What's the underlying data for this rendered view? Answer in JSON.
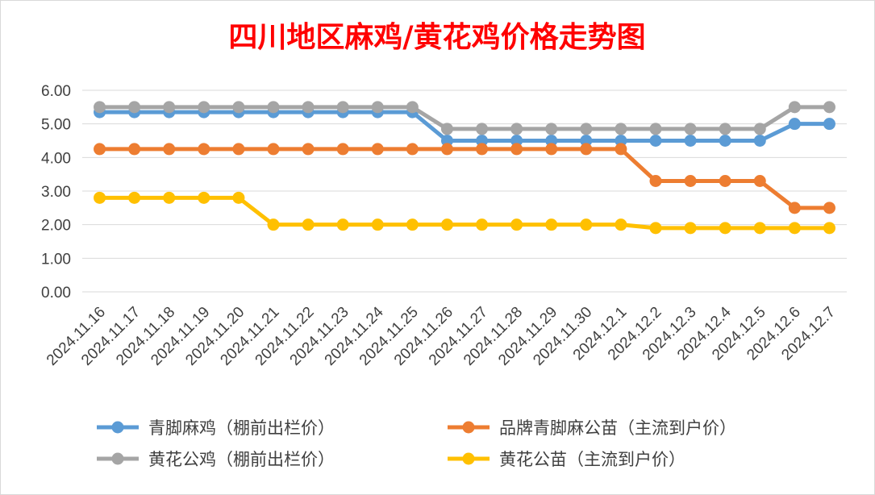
{
  "chart_data": {
    "type": "line",
    "title": "四川地区麻鸡/黄花鸡价格走势图",
    "xlabel": "",
    "ylabel": "",
    "categories": [
      "2024.11.16",
      "2024.11.17",
      "2024.11.18",
      "2024.11.19",
      "2024.11.20",
      "2024.11.21",
      "2024.11.22",
      "2024.11.23",
      "2024.11.24",
      "2024.11.25",
      "2024.11.26",
      "2024.11.27",
      "2024.11.28",
      "2024.11.29",
      "2024.11.30",
      "2024.12.1",
      "2024.12.2",
      "2024.12.3",
      "2024.12.4",
      "2024.12.5",
      "2024.12.6",
      "2024.12.7"
    ],
    "ylim": [
      0,
      6
    ],
    "yticks": [
      "0.00",
      "1.00",
      "2.00",
      "3.00",
      "4.00",
      "5.00",
      "6.00"
    ],
    "grid": "horizontal",
    "legend_position": "bottom",
    "series": [
      {
        "name": "青脚麻鸡（棚前出栏价）",
        "color": "#5b9bd5",
        "values": [
          5.35,
          5.35,
          5.35,
          5.35,
          5.35,
          5.35,
          5.35,
          5.35,
          5.35,
          5.35,
          4.5,
          4.5,
          4.5,
          4.5,
          4.5,
          4.5,
          4.5,
          4.5,
          4.5,
          4.5,
          5.0,
          5.0
        ]
      },
      {
        "name": "品牌青脚麻公苗（主流到户价）",
        "color": "#ed7d31",
        "values": [
          4.25,
          4.25,
          4.25,
          4.25,
          4.25,
          4.25,
          4.25,
          4.25,
          4.25,
          4.25,
          4.25,
          4.25,
          4.25,
          4.25,
          4.25,
          4.25,
          3.3,
          3.3,
          3.3,
          3.3,
          2.5,
          2.5
        ]
      },
      {
        "name": "黄花公鸡（棚前出栏价）",
        "color": "#a5a5a5",
        "values": [
          5.5,
          5.5,
          5.5,
          5.5,
          5.5,
          5.5,
          5.5,
          5.5,
          5.5,
          5.5,
          4.85,
          4.85,
          4.85,
          4.85,
          4.85,
          4.85,
          4.85,
          4.85,
          4.85,
          4.85,
          5.5,
          5.5
        ]
      },
      {
        "name": "黄花公苗（主流到户价）",
        "color": "#ffc000",
        "values": [
          2.8,
          2.8,
          2.8,
          2.8,
          2.8,
          2.0,
          2.0,
          2.0,
          2.0,
          2.0,
          2.0,
          2.0,
          2.0,
          2.0,
          2.0,
          2.0,
          1.9,
          1.9,
          1.9,
          1.9,
          1.9,
          1.9
        ]
      }
    ]
  }
}
